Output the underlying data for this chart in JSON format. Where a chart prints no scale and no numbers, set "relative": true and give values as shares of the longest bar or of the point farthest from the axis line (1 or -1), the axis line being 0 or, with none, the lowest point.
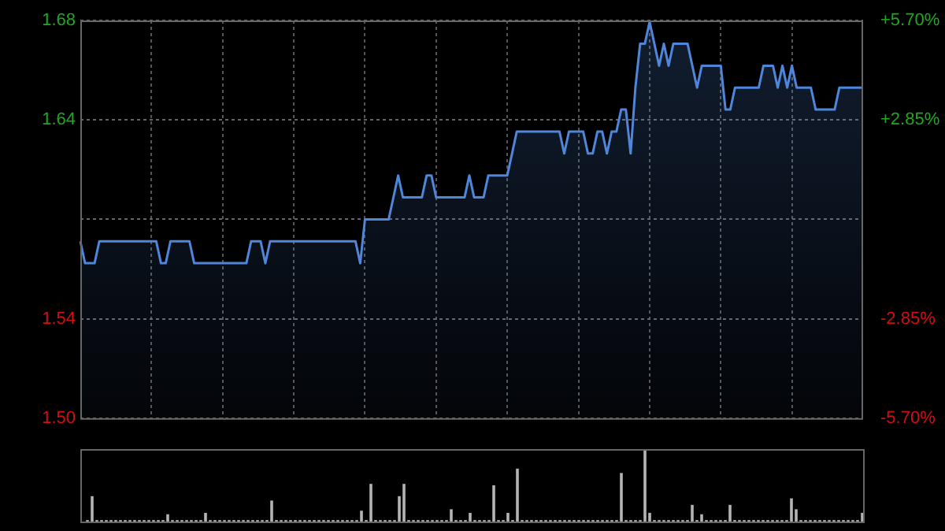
{
  "chart_data": [
    {
      "type": "area",
      "tick_labels": "y",
      "grid": true,
      "legend": false,
      "marker": "none",
      "categories": [
        null,
        null,
        null,
        null,
        null,
        null,
        null,
        null,
        null,
        null,
        null,
        null,
        null,
        null,
        null,
        null,
        null,
        null,
        null,
        null,
        null,
        null,
        null,
        null,
        null,
        null,
        null,
        null,
        null,
        null,
        null,
        null,
        null,
        null,
        null,
        null,
        null,
        null,
        null,
        null,
        null,
        null,
        null,
        null,
        null,
        null,
        null,
        null,
        null,
        null,
        null,
        null,
        null,
        null,
        null,
        null,
        null,
        null,
        null,
        null,
        null,
        null,
        null,
        null,
        null,
        null,
        null,
        null,
        null,
        null,
        null,
        null,
        null,
        null,
        null,
        null,
        null,
        null,
        null,
        null,
        null,
        null,
        null,
        null,
        null,
        null,
        null,
        null,
        null,
        null,
        null,
        null,
        null,
        null,
        null,
        null,
        null,
        null,
        null,
        null,
        null,
        null,
        null,
        null,
        null,
        null,
        null,
        null,
        null,
        null,
        null,
        null,
        null,
        null,
        null,
        null,
        null,
        null,
        null,
        null,
        null,
        null,
        null,
        null,
        null,
        null,
        null,
        null,
        null,
        null,
        null,
        null,
        null,
        null,
        null,
        null,
        null,
        null,
        null,
        null,
        null,
        null,
        null,
        null,
        null,
        null,
        null,
        null,
        null,
        null,
        null,
        null,
        null,
        null,
        null,
        null,
        null,
        null,
        null,
        null,
        null,
        null,
        null,
        null,
        null,
        null
      ],
      "series": [
        {
          "color": "#4f86d9",
          "values": [
            1.58,
            1.57,
            1.57,
            1.57,
            1.58,
            1.58,
            1.58,
            1.58,
            1.58,
            1.58,
            1.58,
            1.58,
            1.58,
            1.58,
            1.58,
            1.58,
            1.58,
            1.57,
            1.57,
            1.58,
            1.58,
            1.58,
            1.58,
            1.58,
            1.57,
            1.57,
            1.57,
            1.57,
            1.57,
            1.57,
            1.57,
            1.57,
            1.57,
            1.57,
            1.57,
            1.57,
            1.58,
            1.58,
            1.58,
            1.57,
            1.58,
            1.58,
            1.58,
            1.58,
            1.58,
            1.58,
            1.58,
            1.58,
            1.58,
            1.58,
            1.58,
            1.58,
            1.58,
            1.58,
            1.58,
            1.58,
            1.58,
            1.58,
            1.58,
            1.57,
            1.59,
            1.59,
            1.59,
            1.59,
            1.59,
            1.59,
            1.6,
            1.61,
            1.6,
            1.6,
            1.6,
            1.6,
            1.6,
            1.61,
            1.61,
            1.6,
            1.6,
            1.6,
            1.6,
            1.6,
            1.6,
            1.6,
            1.61,
            1.6,
            1.6,
            1.6,
            1.61,
            1.61,
            1.61,
            1.61,
            1.61,
            1.62,
            1.63,
            1.63,
            1.63,
            1.63,
            1.63,
            1.63,
            1.63,
            1.63,
            1.63,
            1.63,
            1.62,
            1.63,
            1.63,
            1.63,
            1.63,
            1.62,
            1.62,
            1.63,
            1.63,
            1.62,
            1.63,
            1.63,
            1.64,
            1.64,
            1.62,
            1.65,
            1.67,
            1.67,
            1.68,
            1.67,
            1.66,
            1.67,
            1.66,
            1.67,
            1.67,
            1.67,
            1.67,
            1.66,
            1.65,
            1.66,
            1.66,
            1.66,
            1.66,
            1.66,
            1.64,
            1.64,
            1.65,
            1.65,
            1.65,
            1.65,
            1.65,
            1.65,
            1.66,
            1.66,
            1.66,
            1.65,
            1.66,
            1.65,
            1.66,
            1.65,
            1.65,
            1.65,
            1.65,
            1.64,
            1.64,
            1.64,
            1.64,
            1.64,
            1.65,
            1.65,
            1.65,
            1.65,
            1.65,
            1.65
          ]
        }
      ],
      "ylim": [
        1.4994,
        1.6806
      ],
      "yticks": [
        {
          "value": 1.4994,
          "label": "1.50"
        },
        {
          "value": 1.5447,
          "label": "1.54"
        },
        {
          "value": 1.59,
          "label": null
        },
        {
          "value": 1.6353,
          "label": "1.64"
        },
        {
          "value": 1.6806,
          "label": "1.68"
        }
      ],
      "y2lim": [
        -5.7,
        5.7
      ],
      "y2ticks": [
        {
          "value": -5.7,
          "label": "-5.70%"
        },
        {
          "value": -2.85,
          "label": "-2.85%"
        },
        {
          "value": 2.85,
          "label": "+2.85%"
        },
        {
          "value": 5.7,
          "label": "+5.70%"
        }
      ]
    },
    {
      "type": "bar",
      "relative": true,
      "tick_labels": false,
      "legend": false,
      "categories": [
        null,
        null,
        null,
        null,
        null,
        null,
        null,
        null,
        null,
        null,
        null,
        null,
        null,
        null,
        null,
        null,
        null,
        null,
        null,
        null,
        null,
        null,
        null,
        null,
        null,
        null,
        null,
        null,
        null,
        null,
        null,
        null,
        null,
        null,
        null,
        null,
        null,
        null,
        null,
        null,
        null,
        null,
        null,
        null,
        null,
        null,
        null,
        null,
        null,
        null,
        null,
        null,
        null,
        null,
        null,
        null,
        null,
        null,
        null,
        null,
        null,
        null,
        null,
        null,
        null,
        null,
        null,
        null,
        null,
        null,
        null,
        null,
        null,
        null,
        null,
        null,
        null,
        null,
        null,
        null,
        null,
        null,
        null,
        null,
        null,
        null,
        null,
        null,
        null,
        null,
        null,
        null,
        null,
        null,
        null,
        null,
        null,
        null,
        null,
        null,
        null,
        null,
        null,
        null,
        null,
        null,
        null,
        null,
        null,
        null,
        null,
        null,
        null,
        null,
        null,
        null,
        null,
        null,
        null,
        null,
        null,
        null,
        null,
        null,
        null,
        null,
        null,
        null,
        null,
        null,
        null,
        null,
        null,
        null,
        null,
        null,
        null,
        null,
        null,
        null,
        null,
        null,
        null,
        null,
        null,
        null,
        null,
        null,
        null,
        null,
        null,
        null,
        null,
        null,
        null,
        null,
        null,
        null,
        null,
        null,
        null,
        null,
        null,
        null,
        null,
        null
      ],
      "series": [
        {
          "color": "#b4b4b4",
          "values": [
            null,
            0.02,
            0.35,
            0.02,
            0.02,
            0.02,
            0.02,
            0.02,
            0.02,
            0.02,
            0.02,
            0.02,
            0.02,
            0.02,
            0.02,
            0.02,
            0.02,
            0.02,
            0.1,
            0.02,
            0.02,
            0.02,
            0.02,
            0.02,
            0.02,
            0.02,
            0.12,
            0.02,
            0.02,
            0.02,
            0.02,
            0.02,
            0.02,
            0.02,
            0.02,
            0.02,
            0.02,
            0.02,
            0.02,
            0.02,
            0.29,
            0.02,
            0.02,
            0.02,
            0.02,
            0.02,
            0.02,
            0.02,
            0.02,
            0.02,
            0.02,
            0.02,
            0.02,
            0.02,
            0.02,
            0.02,
            0.02,
            0.02,
            0.02,
            0.15,
            0.02,
            0.52,
            0.02,
            0.02,
            0.02,
            0.02,
            0.02,
            0.35,
            0.52,
            0.02,
            0.02,
            0.02,
            0.02,
            0.02,
            0.02,
            0.02,
            0.02,
            0.02,
            0.17,
            0.02,
            0.02,
            0.02,
            0.12,
            0.02,
            0.02,
            0.02,
            0.02,
            0.5,
            0.02,
            0.02,
            0.12,
            0.02,
            0.73,
            0.02,
            0.02,
            0.02,
            0.02,
            0.02,
            0.02,
            0.02,
            0.02,
            0.02,
            0.02,
            0.02,
            0.02,
            0.02,
            0.02,
            0.02,
            0.02,
            0.02,
            0.02,
            0.02,
            0.02,
            0.02,
            0.67,
            0.02,
            0.02,
            0.02,
            0.02,
            1,
            0.12,
            0.02,
            0.02,
            0.02,
            0.02,
            0.02,
            0.02,
            0.02,
            0.02,
            0.23,
            0.02,
            0.1,
            0.02,
            0.02,
            0.02,
            0.02,
            0.02,
            0.23,
            0.02,
            0.02,
            0.02,
            0.02,
            0.02,
            0.02,
            0.02,
            0.02,
            0.02,
            0.02,
            0.02,
            0.02,
            0.32,
            0.17,
            0.02,
            0.02,
            0.02,
            0.02,
            0.02,
            0.02,
            0.02,
            0.02,
            0.02,
            0.02,
            0.02,
            0.02,
            0.02,
            0.12
          ]
        }
      ]
    }
  ]
}
